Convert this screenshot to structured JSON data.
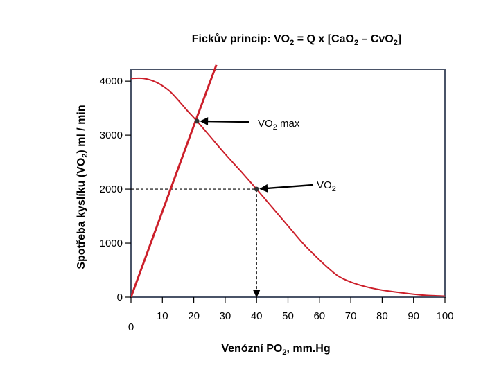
{
  "chart_data": {
    "type": "line",
    "title": "Fickův princip:  VO",
    "title_sub_1": "2",
    "title_mid": " = Q x [CaO",
    "title_sub_2": "2",
    "title_mid_2": " – CvO",
    "title_sub_3": "2",
    "title_end": "]",
    "xlabel": "Venózní PO",
    "xlabel_sub": "2",
    "xlabel_end": ", mm.Hg",
    "ylabel": "Spotřeba kyslíku (VO",
    "ylabel_sub": "2",
    "ylabel_end": ") ml / min",
    "xlim": [
      0,
      100
    ],
    "ylim": [
      0,
      4000
    ],
    "x_ticks": [
      "0",
      "10",
      "20",
      "30",
      "40",
      "50",
      "60",
      "70",
      "80",
      "90",
      "100"
    ],
    "x_tick_values": [
      0,
      10,
      20,
      30,
      40,
      50,
      60,
      70,
      80,
      90,
      100
    ],
    "y_ticks": [
      "0",
      "1000",
      "2000",
      "3000",
      "4000"
    ],
    "y_tick_values": [
      0,
      1000,
      2000,
      3000,
      4000
    ],
    "series": [
      {
        "kind": "line",
        "x": [
          0,
          20.8,
          27.2
        ],
        "y": [
          0,
          3300,
          4300
        ]
      },
      {
        "kind": "curve",
        "x": [
          0,
          4,
          8,
          12,
          15,
          18,
          21,
          25,
          30,
          35,
          40,
          45,
          50,
          55,
          60,
          63,
          66,
          70,
          75,
          80,
          85,
          90,
          95,
          100
        ],
        "y": [
          4050,
          4050,
          3980,
          3830,
          3650,
          3450,
          3260,
          2990,
          2650,
          2330,
          2000,
          1660,
          1320,
          980,
          690,
          530,
          390,
          280,
          190,
          130,
          90,
          55,
          30,
          20
        ]
      }
    ],
    "annotations": [
      {
        "label": "VO",
        "label_sub": "2",
        "label_end": " max",
        "x": 21,
        "y": 3260
      },
      {
        "label": "VO",
        "label_sub": "2",
        "label_end": "",
        "x": 40,
        "y": 2000
      }
    ],
    "colors": {
      "curve": "#cc1f2a",
      "frame": "#4a5468",
      "axis": "#000000"
    }
  }
}
